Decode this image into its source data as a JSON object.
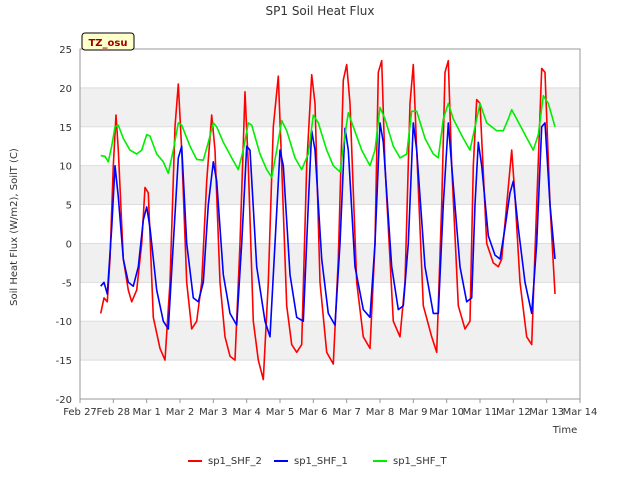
{
  "chart_data": {
    "type": "line",
    "title": "SP1 Soil Heat Flux",
    "xlabel": "Time",
    "ylabel": "Soil Heat Flux (W/m2), SoilT (C)",
    "annotation": "TZ_osu",
    "x_ticks": [
      "Feb 27",
      "Feb 28",
      "Mar 1",
      "Mar 2",
      "Mar 3",
      "Mar 4",
      "Mar 5",
      "Mar 6",
      "Mar 7",
      "Mar 8",
      "Mar 9",
      "Mar 10",
      "Mar 11",
      "Mar 12",
      "Mar 13",
      "Mar 14"
    ],
    "y_ticks": [
      -20,
      -15,
      -10,
      -5,
      0,
      5,
      10,
      15,
      20,
      25
    ],
    "xlim": [
      0,
      15
    ],
    "ylim": [
      -20,
      25
    ],
    "grid": true,
    "legend_position": "bottom",
    "series": [
      {
        "name": "sp1_SHF_2",
        "color": "#ff0000",
        "points": [
          [
            0.62,
            -9.0
          ],
          [
            0.72,
            -7.0
          ],
          [
            0.82,
            -7.5
          ],
          [
            0.9,
            -2.0
          ],
          [
            1.0,
            10.0
          ],
          [
            1.08,
            16.5
          ],
          [
            1.15,
            12.0
          ],
          [
            1.3,
            -2.0
          ],
          [
            1.45,
            -6.0
          ],
          [
            1.55,
            -7.5
          ],
          [
            1.7,
            -6.0
          ],
          [
            1.85,
            0.0
          ],
          [
            1.95,
            7.2
          ],
          [
            2.05,
            6.5
          ],
          [
            2.2,
            -9.5
          ],
          [
            2.4,
            -13.5
          ],
          [
            2.55,
            -15.0
          ],
          [
            2.7,
            -5.0
          ],
          [
            2.85,
            15.0
          ],
          [
            2.95,
            20.5
          ],
          [
            3.05,
            12.0
          ],
          [
            3.2,
            -5.0
          ],
          [
            3.35,
            -11.0
          ],
          [
            3.5,
            -10.0
          ],
          [
            3.65,
            -5.0
          ],
          [
            3.8,
            8.0
          ],
          [
            3.95,
            16.5
          ],
          [
            4.05,
            12.0
          ],
          [
            4.2,
            -5.0
          ],
          [
            4.35,
            -12.0
          ],
          [
            4.5,
            -14.5
          ],
          [
            4.65,
            -15.0
          ],
          [
            4.8,
            0.0
          ],
          [
            4.95,
            19.5
          ],
          [
            5.05,
            10.0
          ],
          [
            5.2,
            -10.0
          ],
          [
            5.35,
            -15.0
          ],
          [
            5.5,
            -17.5
          ],
          [
            5.65,
            -5.0
          ],
          [
            5.8,
            15.0
          ],
          [
            5.95,
            21.5
          ],
          [
            6.05,
            10.0
          ],
          [
            6.2,
            -8.0
          ],
          [
            6.35,
            -13.0
          ],
          [
            6.5,
            -14.0
          ],
          [
            6.65,
            -13.0
          ],
          [
            6.8,
            10.0
          ],
          [
            6.95,
            21.7
          ],
          [
            7.05,
            18.0
          ],
          [
            7.2,
            -5.0
          ],
          [
            7.4,
            -14.0
          ],
          [
            7.6,
            -15.5
          ],
          [
            7.75,
            -2.0
          ],
          [
            7.9,
            21.0
          ],
          [
            8.0,
            23.0
          ],
          [
            8.1,
            18.0
          ],
          [
            8.3,
            -5.0
          ],
          [
            8.5,
            -12.0
          ],
          [
            8.7,
            -13.5
          ],
          [
            8.85,
            0.0
          ],
          [
            8.95,
            22.0
          ],
          [
            9.05,
            23.5
          ],
          [
            9.15,
            10.0
          ],
          [
            9.4,
            -10.0
          ],
          [
            9.6,
            -12.0
          ],
          [
            9.75,
            -5.0
          ],
          [
            9.9,
            18.0
          ],
          [
            10.0,
            23.0
          ],
          [
            10.1,
            12.0
          ],
          [
            10.3,
            -8.0
          ],
          [
            10.55,
            -12.0
          ],
          [
            10.7,
            -14.0
          ],
          [
            10.85,
            5.0
          ],
          [
            10.95,
            22.0
          ],
          [
            11.05,
            23.5
          ],
          [
            11.15,
            10.0
          ],
          [
            11.35,
            -8.0
          ],
          [
            11.55,
            -11.0
          ],
          [
            11.7,
            -10.0
          ],
          [
            11.8,
            10.0
          ],
          [
            11.9,
            18.5
          ],
          [
            12.0,
            18.0
          ],
          [
            12.2,
            0.0
          ],
          [
            12.4,
            -2.5
          ],
          [
            12.55,
            -3.0
          ],
          [
            12.65,
            -2.0
          ],
          [
            12.8,
            5.0
          ],
          [
            12.95,
            12.0
          ],
          [
            13.05,
            6.0
          ],
          [
            13.2,
            -5.0
          ],
          [
            13.4,
            -12.0
          ],
          [
            13.55,
            -13.0
          ],
          [
            13.7,
            5.0
          ],
          [
            13.85,
            22.5
          ],
          [
            13.95,
            22.0
          ],
          [
            14.1,
            5.0
          ],
          [
            14.25,
            -6.5
          ]
        ]
      },
      {
        "name": "sp1_SHF_1",
        "color": "#0000ff",
        "points": [
          [
            0.62,
            -5.5
          ],
          [
            0.72,
            -5.0
          ],
          [
            0.82,
            -6.5
          ],
          [
            0.95,
            2.0
          ],
          [
            1.05,
            10.0
          ],
          [
            1.15,
            6.0
          ],
          [
            1.3,
            -2.0
          ],
          [
            1.45,
            -5.0
          ],
          [
            1.6,
            -5.5
          ],
          [
            1.75,
            -3.0
          ],
          [
            1.9,
            3.0
          ],
          [
            2.0,
            4.7
          ],
          [
            2.1,
            2.0
          ],
          [
            2.3,
            -6.0
          ],
          [
            2.5,
            -10.0
          ],
          [
            2.65,
            -11.0
          ],
          [
            2.8,
            0.0
          ],
          [
            2.95,
            11.0
          ],
          [
            3.05,
            12.5
          ],
          [
            3.2,
            0.0
          ],
          [
            3.4,
            -7.0
          ],
          [
            3.55,
            -7.5
          ],
          [
            3.7,
            -5.0
          ],
          [
            3.85,
            5.0
          ],
          [
            4.0,
            10.5
          ],
          [
            4.1,
            8.0
          ],
          [
            4.3,
            -4.0
          ],
          [
            4.5,
            -9.0
          ],
          [
            4.7,
            -10.5
          ],
          [
            4.85,
            0.0
          ],
          [
            5.0,
            12.5
          ],
          [
            5.1,
            12.0
          ],
          [
            5.3,
            -3.0
          ],
          [
            5.55,
            -10.0
          ],
          [
            5.7,
            -12.0
          ],
          [
            5.85,
            0.0
          ],
          [
            6.0,
            12.0
          ],
          [
            6.1,
            10.0
          ],
          [
            6.3,
            -4.0
          ],
          [
            6.5,
            -9.5
          ],
          [
            6.7,
            -10.0
          ],
          [
            6.85,
            5.0
          ],
          [
            6.95,
            14.5
          ],
          [
            7.05,
            12.0
          ],
          [
            7.25,
            -2.0
          ],
          [
            7.45,
            -9.0
          ],
          [
            7.65,
            -10.5
          ],
          [
            7.8,
            0.0
          ],
          [
            7.95,
            14.8
          ],
          [
            8.05,
            12.0
          ],
          [
            8.25,
            -3.0
          ],
          [
            8.5,
            -8.5
          ],
          [
            8.7,
            -9.5
          ],
          [
            8.85,
            0.0
          ],
          [
            9.0,
            15.5
          ],
          [
            9.1,
            13.0
          ],
          [
            9.35,
            -3.0
          ],
          [
            9.55,
            -8.5
          ],
          [
            9.7,
            -8.0
          ],
          [
            9.85,
            0.0
          ],
          [
            10.0,
            15.5
          ],
          [
            10.1,
            12.0
          ],
          [
            10.35,
            -3.0
          ],
          [
            10.6,
            -9.0
          ],
          [
            10.75,
            -9.0
          ],
          [
            10.9,
            5.0
          ],
          [
            11.05,
            15.5
          ],
          [
            11.15,
            10.0
          ],
          [
            11.4,
            -3.0
          ],
          [
            11.6,
            -7.5
          ],
          [
            11.75,
            -7.0
          ],
          [
            11.85,
            5.0
          ],
          [
            11.95,
            13.0
          ],
          [
            12.05,
            10.0
          ],
          [
            12.25,
            1.0
          ],
          [
            12.45,
            -1.5
          ],
          [
            12.6,
            -2.0
          ],
          [
            12.75,
            2.0
          ],
          [
            12.9,
            6.5
          ],
          [
            13.0,
            8.0
          ],
          [
            13.15,
            2.0
          ],
          [
            13.35,
            -5.0
          ],
          [
            13.55,
            -9.0
          ],
          [
            13.7,
            0.0
          ],
          [
            13.85,
            15.0
          ],
          [
            13.95,
            15.5
          ],
          [
            14.1,
            5.0
          ],
          [
            14.25,
            -2.0
          ]
        ]
      },
      {
        "name": "sp1_SHF_T",
        "color": "#00ee00",
        "points": [
          [
            0.62,
            11.3
          ],
          [
            0.75,
            11.2
          ],
          [
            0.85,
            10.5
          ],
          [
            0.95,
            12.5
          ],
          [
            1.05,
            15.0
          ],
          [
            1.15,
            15.2
          ],
          [
            1.3,
            13.5
          ],
          [
            1.5,
            12.0
          ],
          [
            1.7,
            11.5
          ],
          [
            1.85,
            12.0
          ],
          [
            2.0,
            14.0
          ],
          [
            2.1,
            13.8
          ],
          [
            2.3,
            11.5
          ],
          [
            2.5,
            10.5
          ],
          [
            2.65,
            9.0
          ],
          [
            2.8,
            12.0
          ],
          [
            2.95,
            15.5
          ],
          [
            3.05,
            15.2
          ],
          [
            3.3,
            12.5
          ],
          [
            3.5,
            10.8
          ],
          [
            3.7,
            10.7
          ],
          [
            3.85,
            13.0
          ],
          [
            4.0,
            15.5
          ],
          [
            4.1,
            15.0
          ],
          [
            4.3,
            13.0
          ],
          [
            4.55,
            11.0
          ],
          [
            4.75,
            9.5
          ],
          [
            4.9,
            12.0
          ],
          [
            5.05,
            15.5
          ],
          [
            5.15,
            15.2
          ],
          [
            5.4,
            11.5
          ],
          [
            5.6,
            9.5
          ],
          [
            5.75,
            8.5
          ],
          [
            5.9,
            12.0
          ],
          [
            6.05,
            15.8
          ],
          [
            6.2,
            14.5
          ],
          [
            6.45,
            11.0
          ],
          [
            6.65,
            9.5
          ],
          [
            6.85,
            11.5
          ],
          [
            7.0,
            16.5
          ],
          [
            7.15,
            15.5
          ],
          [
            7.4,
            12.0
          ],
          [
            7.6,
            10.0
          ],
          [
            7.8,
            9.2
          ],
          [
            7.95,
            14.0
          ],
          [
            8.05,
            16.8
          ],
          [
            8.2,
            15.0
          ],
          [
            8.45,
            12.0
          ],
          [
            8.7,
            10.0
          ],
          [
            8.85,
            12.0
          ],
          [
            9.0,
            17.5
          ],
          [
            9.15,
            16.0
          ],
          [
            9.4,
            12.5
          ],
          [
            9.6,
            11.0
          ],
          [
            9.8,
            11.5
          ],
          [
            9.95,
            17.0
          ],
          [
            10.1,
            17.0
          ],
          [
            10.35,
            13.5
          ],
          [
            10.6,
            11.5
          ],
          [
            10.75,
            11.0
          ],
          [
            10.9,
            16.0
          ],
          [
            11.05,
            18.0
          ],
          [
            11.2,
            16.0
          ],
          [
            11.5,
            13.5
          ],
          [
            11.7,
            12.0
          ],
          [
            11.9,
            16.0
          ],
          [
            12.0,
            18.0
          ],
          [
            12.2,
            15.5
          ],
          [
            12.5,
            14.5
          ],
          [
            12.7,
            14.5
          ],
          [
            12.85,
            16.0
          ],
          [
            12.95,
            17.2
          ],
          [
            13.1,
            16.0
          ],
          [
            13.35,
            14.0
          ],
          [
            13.6,
            12.0
          ],
          [
            13.75,
            14.0
          ],
          [
            13.9,
            19.0
          ],
          [
            14.05,
            18.0
          ],
          [
            14.25,
            15.0
          ]
        ]
      }
    ]
  }
}
